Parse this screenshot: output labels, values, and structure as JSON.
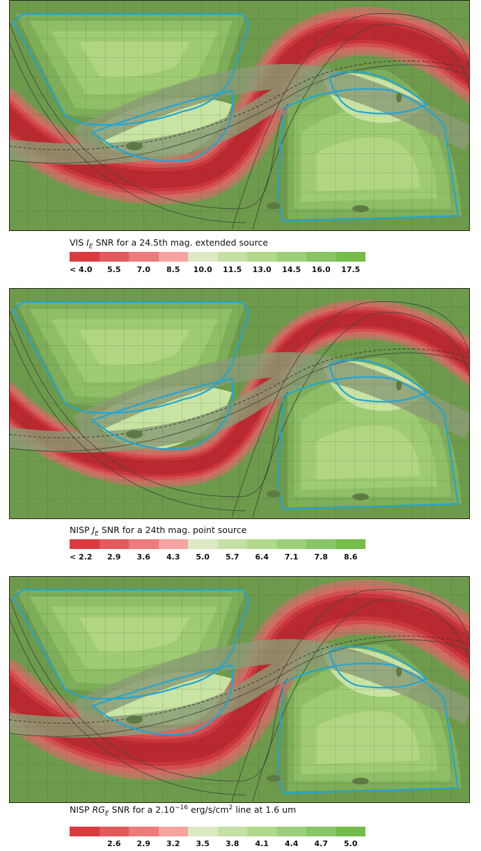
{
  "panels": [
    {
      "title_prefix": "VIS ",
      "title_var": "I",
      "title_sub": "E",
      "title_suffix": " SNR for a 24.5th mag. extended source",
      "ticks": [
        "< 4.0",
        "5.5",
        "7.0",
        "8.5",
        "10.0",
        "11.5",
        "13.0",
        "14.5",
        "16.0",
        "17.5"
      ],
      "band_width": 1.0,
      "lane_level": 0.45
    },
    {
      "title_prefix": "NISP ",
      "title_var": "J",
      "title_sub": "E",
      "title_suffix": " SNR for a 24th mag. point source",
      "ticks": [
        "< 2.2",
        "2.9",
        "3.6",
        "4.3",
        "5.0",
        "5.7",
        "6.4",
        "7.1",
        "7.8",
        "8.6"
      ],
      "band_width": 0.8,
      "lane_level": 0.5
    },
    {
      "title_prefix": "NISP ",
      "title_var": "RG",
      "title_sub": "E",
      "title_suffix_pre": " SNR for a 2.10",
      "title_exp": "−16",
      "title_suffix_mid": " erg/s/cm",
      "title_exp2": "2",
      "title_suffix_post": " line at 1.6 um",
      "ticks": [
        "",
        "2.6",
        "2.9",
        "3.2",
        "3.5",
        "3.8",
        "4.1",
        "4.4",
        "4.7",
        "5.0"
      ],
      "band_width": 1.15,
      "lane_level": 0.35
    }
  ],
  "chart_data": [
    {
      "type": "heatmap",
      "title": "VIS I_E SNR for a 24.5th mag. extended source",
      "colorbar_ticks": [
        "< 4.0",
        "5.5",
        "7.0",
        "8.5",
        "10.0",
        "11.5",
        "13.0",
        "14.5",
        "16.0",
        "17.5"
      ],
      "colorbar_values": [
        4.0,
        5.5,
        7.0,
        8.5,
        10.0,
        11.5,
        13.0,
        14.5,
        16.0,
        17.5
      ]
    },
    {
      "type": "heatmap",
      "title": "NISP J_E SNR for a 24th mag. point source",
      "colorbar_ticks": [
        "< 2.2",
        "2.9",
        "3.6",
        "4.3",
        "5.0",
        "5.7",
        "6.4",
        "7.1",
        "7.8",
        "8.6"
      ],
      "colorbar_values": [
        2.2,
        2.9,
        3.6,
        4.3,
        5.0,
        5.7,
        6.4,
        7.1,
        7.8,
        8.6
      ]
    },
    {
      "type": "heatmap",
      "title": "NISP RG_E SNR for a 2.10^-16 erg/s/cm^2 line at 1.6 um",
      "colorbar_ticks": [
        "2.6",
        "2.9",
        "3.2",
        "3.5",
        "3.8",
        "4.1",
        "4.4",
        "4.7",
        "5.0"
      ],
      "colorbar_values": [
        2.6,
        2.9,
        3.2,
        3.5,
        3.8,
        4.1,
        4.4,
        4.7,
        5.0
      ]
    }
  ],
  "colors": {
    "scale": [
      "#d93b3f",
      "#e25a5c",
      "#ec7b7b",
      "#f6a3a1",
      "#dde9c3",
      "#c5e0a4",
      "#b0d98b",
      "#9ccf79",
      "#87c565",
      "#73bd48"
    ],
    "survey_outline": "#1fa6d6",
    "background": "#7fa85c",
    "lane": "#8c9c76",
    "line": "#3f4a3a"
  }
}
